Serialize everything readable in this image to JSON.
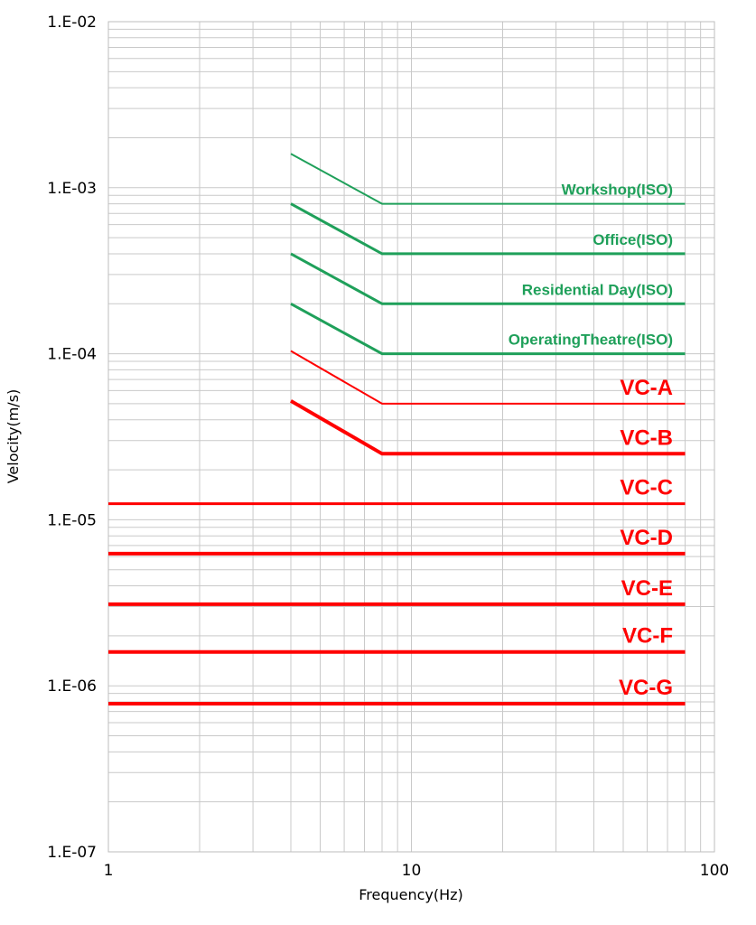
{
  "chart_data": {
    "type": "line",
    "xlabel": "Frequency(Hz)",
    "ylabel": "Velocity(m/s)",
    "x_scale": "log",
    "y_scale": "log",
    "xlim": [
      1,
      100
    ],
    "ylim": [
      1e-07,
      0.01
    ],
    "x_ticks": [
      {
        "value": 1,
        "label": "1"
      },
      {
        "value": 10,
        "label": "10"
      },
      {
        "value": 100,
        "label": "100"
      }
    ],
    "y_ticks": [
      {
        "value": 0.01,
        "label": "1.E-02"
      },
      {
        "value": 0.001,
        "label": "1.E-03"
      },
      {
        "value": 0.0001,
        "label": "1.E-04"
      },
      {
        "value": 1e-05,
        "label": "1.E-05"
      },
      {
        "value": 1e-06,
        "label": "1.E-06"
      },
      {
        "value": 1e-07,
        "label": "1.E-07"
      }
    ],
    "grid": true,
    "series": [
      {
        "name": "Workshop(ISO)",
        "color": "#1fa05a",
        "points": [
          [
            4,
            0.0016
          ],
          [
            8,
            0.0008
          ],
          [
            80,
            0.0008
          ]
        ]
      },
      {
        "name": "Office(ISO)",
        "color": "#1fa05a",
        "points": [
          [
            4,
            0.0008
          ],
          [
            8,
            0.0004
          ],
          [
            80,
            0.0004
          ]
        ]
      },
      {
        "name": "Residential Day(ISO)",
        "color": "#1fa05a",
        "points": [
          [
            4,
            0.0004
          ],
          [
            8,
            0.0002
          ],
          [
            80,
            0.0002
          ]
        ]
      },
      {
        "name": "OperatingTheatre(ISO)",
        "color": "#1fa05a",
        "points": [
          [
            4,
            0.0002
          ],
          [
            8,
            0.0001
          ],
          [
            80,
            0.0001
          ]
        ]
      },
      {
        "name": "VC-A",
        "color": "#ff0000",
        "points": [
          [
            4,
            0.000104
          ],
          [
            8,
            5e-05
          ],
          [
            80,
            5e-05
          ]
        ]
      },
      {
        "name": "VC-B",
        "color": "#ff0000",
        "points": [
          [
            4,
            5.2e-05
          ],
          [
            8,
            2.5e-05
          ],
          [
            80,
            2.5e-05
          ]
        ]
      },
      {
        "name": "VC-C",
        "color": "#ff0000",
        "points": [
          [
            1,
            1.25e-05
          ],
          [
            80,
            1.25e-05
          ]
        ]
      },
      {
        "name": "VC-D",
        "color": "#ff0000",
        "points": [
          [
            1,
            6.25e-06
          ],
          [
            80,
            6.25e-06
          ]
        ]
      },
      {
        "name": "VC-E",
        "color": "#ff0000",
        "points": [
          [
            1,
            3.1e-06
          ],
          [
            80,
            3.1e-06
          ]
        ]
      },
      {
        "name": "VC-F",
        "color": "#ff0000",
        "points": [
          [
            1,
            1.6e-06
          ],
          [
            80,
            1.6e-06
          ]
        ]
      },
      {
        "name": "VC-G",
        "color": "#ff0000",
        "points": [
          [
            1,
            7.8e-07
          ],
          [
            80,
            7.8e-07
          ]
        ]
      }
    ]
  }
}
